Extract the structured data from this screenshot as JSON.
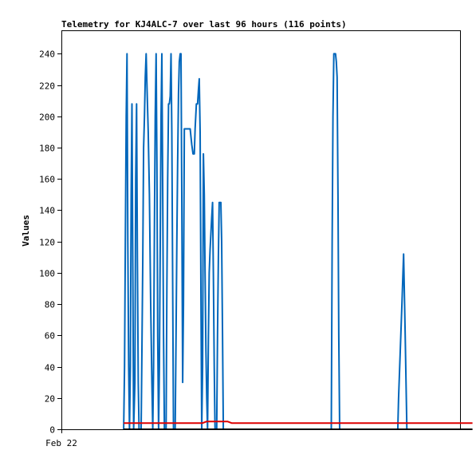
{
  "chart_data": {
    "type": "line",
    "title": "Telemetry for KJ4ALC-7 over last 96 hours (116 points)",
    "xlabel": "",
    "ylabel": "Values",
    "x_tick_labels": [
      "Feb 22"
    ],
    "ylim": [
      0,
      240
    ],
    "yticks": [
      0,
      20,
      40,
      60,
      80,
      100,
      120,
      140,
      160,
      180,
      200,
      220,
      240
    ],
    "grid": false,
    "x_range_hours": [
      0,
      96
    ],
    "series": [
      {
        "name": "",
        "color": "#0066bb",
        "points": [
          [
            15.0,
            0
          ],
          [
            15.2,
            40
          ],
          [
            15.4,
            120
          ],
          [
            15.6,
            200
          ],
          [
            15.8,
            240
          ],
          [
            16.0,
            120
          ],
          [
            16.2,
            40
          ],
          [
            16.4,
            0
          ],
          [
            16.6,
            40
          ],
          [
            16.8,
            150
          ],
          [
            17.0,
            208
          ],
          [
            17.2,
            100
          ],
          [
            17.4,
            0
          ],
          [
            17.7,
            30
          ],
          [
            17.9,
            160
          ],
          [
            18.1,
            208
          ],
          [
            18.3,
            110
          ],
          [
            18.5,
            30
          ],
          [
            18.7,
            0
          ],
          [
            19.2,
            0
          ],
          [
            19.4,
            50
          ],
          [
            19.6,
            110
          ],
          [
            19.8,
            180
          ],
          [
            20.0,
            200
          ],
          [
            20.2,
            225
          ],
          [
            20.4,
            240
          ],
          [
            20.6,
            220
          ],
          [
            20.9,
            190
          ],
          [
            21.2,
            150
          ],
          [
            21.5,
            80
          ],
          [
            21.8,
            30
          ],
          [
            22.0,
            0
          ],
          [
            22.2,
            40
          ],
          [
            22.4,
            130
          ],
          [
            22.6,
            200
          ],
          [
            22.8,
            240
          ],
          [
            23.0,
            170
          ],
          [
            23.2,
            60
          ],
          [
            23.4,
            0
          ],
          [
            23.6,
            40
          ],
          [
            23.8,
            120
          ],
          [
            24.0,
            200
          ],
          [
            24.2,
            240
          ],
          [
            24.4,
            150
          ],
          [
            24.6,
            60
          ],
          [
            24.8,
            0
          ],
          [
            25.2,
            0
          ],
          [
            25.4,
            90
          ],
          [
            25.6,
            160
          ],
          [
            25.8,
            208
          ],
          [
            26.0,
            208
          ],
          [
            26.2,
            213
          ],
          [
            26.4,
            240
          ],
          [
            26.6,
            190
          ],
          [
            26.8,
            90
          ],
          [
            27.0,
            0
          ],
          [
            27.4,
            0
          ],
          [
            27.6,
            60
          ],
          [
            27.8,
            120
          ],
          [
            28.0,
            170
          ],
          [
            28.2,
            215
          ],
          [
            28.4,
            235
          ],
          [
            28.6,
            240
          ],
          [
            28.8,
            240
          ],
          [
            29.0,
            150
          ],
          [
            29.2,
            30
          ],
          [
            29.4,
            80
          ],
          [
            29.6,
            192
          ],
          [
            30.0,
            192
          ],
          [
            30.5,
            192
          ],
          [
            31.0,
            192
          ],
          [
            31.4,
            182
          ],
          [
            31.7,
            176
          ],
          [
            32.0,
            176
          ],
          [
            32.2,
            192
          ],
          [
            32.5,
            208
          ],
          [
            32.8,
            208
          ],
          [
            33.0,
            217
          ],
          [
            33.2,
            224
          ],
          [
            33.4,
            190
          ],
          [
            33.6,
            90
          ],
          [
            33.8,
            0
          ],
          [
            34.0,
            40
          ],
          [
            34.2,
            176
          ],
          [
            34.4,
            150
          ],
          [
            34.6,
            100
          ],
          [
            34.8,
            50
          ],
          [
            35.0,
            20
          ],
          [
            35.2,
            0
          ],
          [
            35.4,
            60
          ],
          [
            35.6,
            100
          ],
          [
            35.8,
            115
          ],
          [
            36.0,
            125
          ],
          [
            36.2,
            135
          ],
          [
            36.4,
            145
          ],
          [
            36.6,
            100
          ],
          [
            36.8,
            40
          ],
          [
            37.0,
            0
          ],
          [
            37.4,
            0
          ],
          [
            37.6,
            60
          ],
          [
            37.8,
            110
          ],
          [
            38.0,
            145
          ],
          [
            38.4,
            145
          ],
          [
            38.6,
            120
          ],
          [
            38.8,
            60
          ],
          [
            39.0,
            0
          ],
          [
            65.0,
            0
          ],
          [
            65.2,
            120
          ],
          [
            65.4,
            200
          ],
          [
            65.6,
            240
          ],
          [
            66.0,
            240
          ],
          [
            66.2,
            235
          ],
          [
            66.4,
            225
          ],
          [
            66.6,
            150
          ],
          [
            66.8,
            60
          ],
          [
            67.0,
            0
          ],
          [
            81.0,
            0
          ],
          [
            81.2,
            20
          ],
          [
            81.6,
            50
          ],
          [
            82.0,
            80
          ],
          [
            82.4,
            112
          ],
          [
            82.8,
            60
          ],
          [
            83.2,
            0
          ]
        ]
      },
      {
        "name": "",
        "color": "#dd0000",
        "points": [
          [
            15.0,
            4
          ],
          [
            34.0,
            4
          ],
          [
            35.0,
            5
          ],
          [
            40.0,
            5
          ],
          [
            41.0,
            4
          ],
          [
            99.0,
            4
          ]
        ]
      },
      {
        "name": "",
        "color": "#000000",
        "points": [
          [
            15.0,
            0
          ],
          [
            99.0,
            0
          ]
        ]
      }
    ]
  }
}
